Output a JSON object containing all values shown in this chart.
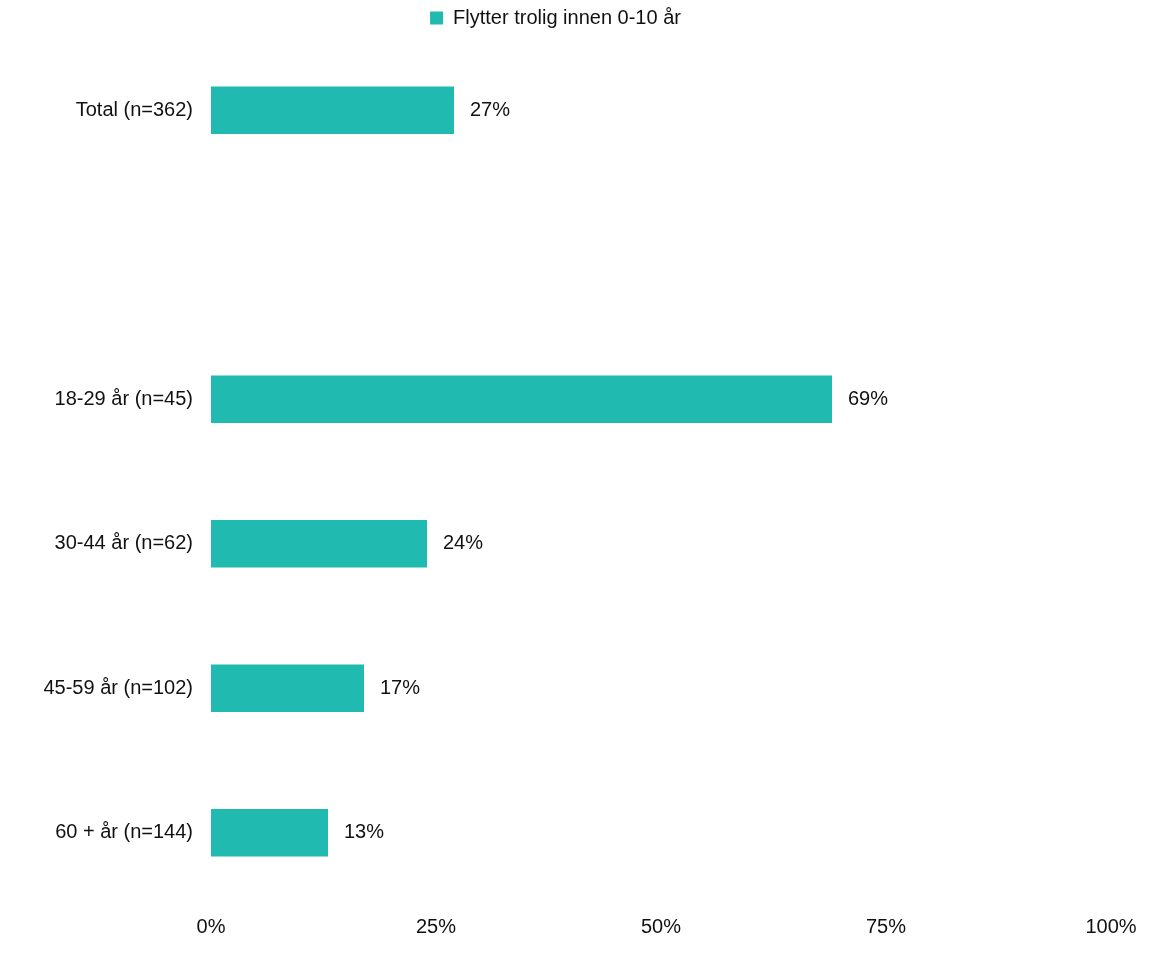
{
  "chart_data": {
    "type": "bar",
    "orientation": "horizontal",
    "categories": [
      "Total (n=362)",
      null,
      "18-29 år (n=45)",
      "30-44 år (n=62)",
      "45-59 år (n=102)",
      "60 + år (n=144)"
    ],
    "series": [
      {
        "name": "Flytter trolig innen 0-10 år",
        "color": "#20bab0",
        "values": [
          27,
          null,
          69,
          24,
          17,
          13
        ],
        "value_labels": [
          "27%",
          null,
          "69%",
          "24%",
          "17%",
          "13%"
        ]
      }
    ],
    "xlim": [
      0,
      100
    ],
    "xticks": [
      {
        "value": 0,
        "label": "0%"
      },
      {
        "value": 25,
        "label": "25%"
      },
      {
        "value": 50,
        "label": "50%"
      },
      {
        "value": 75,
        "label": "75%"
      },
      {
        "value": 100,
        "label": "100%"
      }
    ],
    "grid": false,
    "legend": "top"
  }
}
